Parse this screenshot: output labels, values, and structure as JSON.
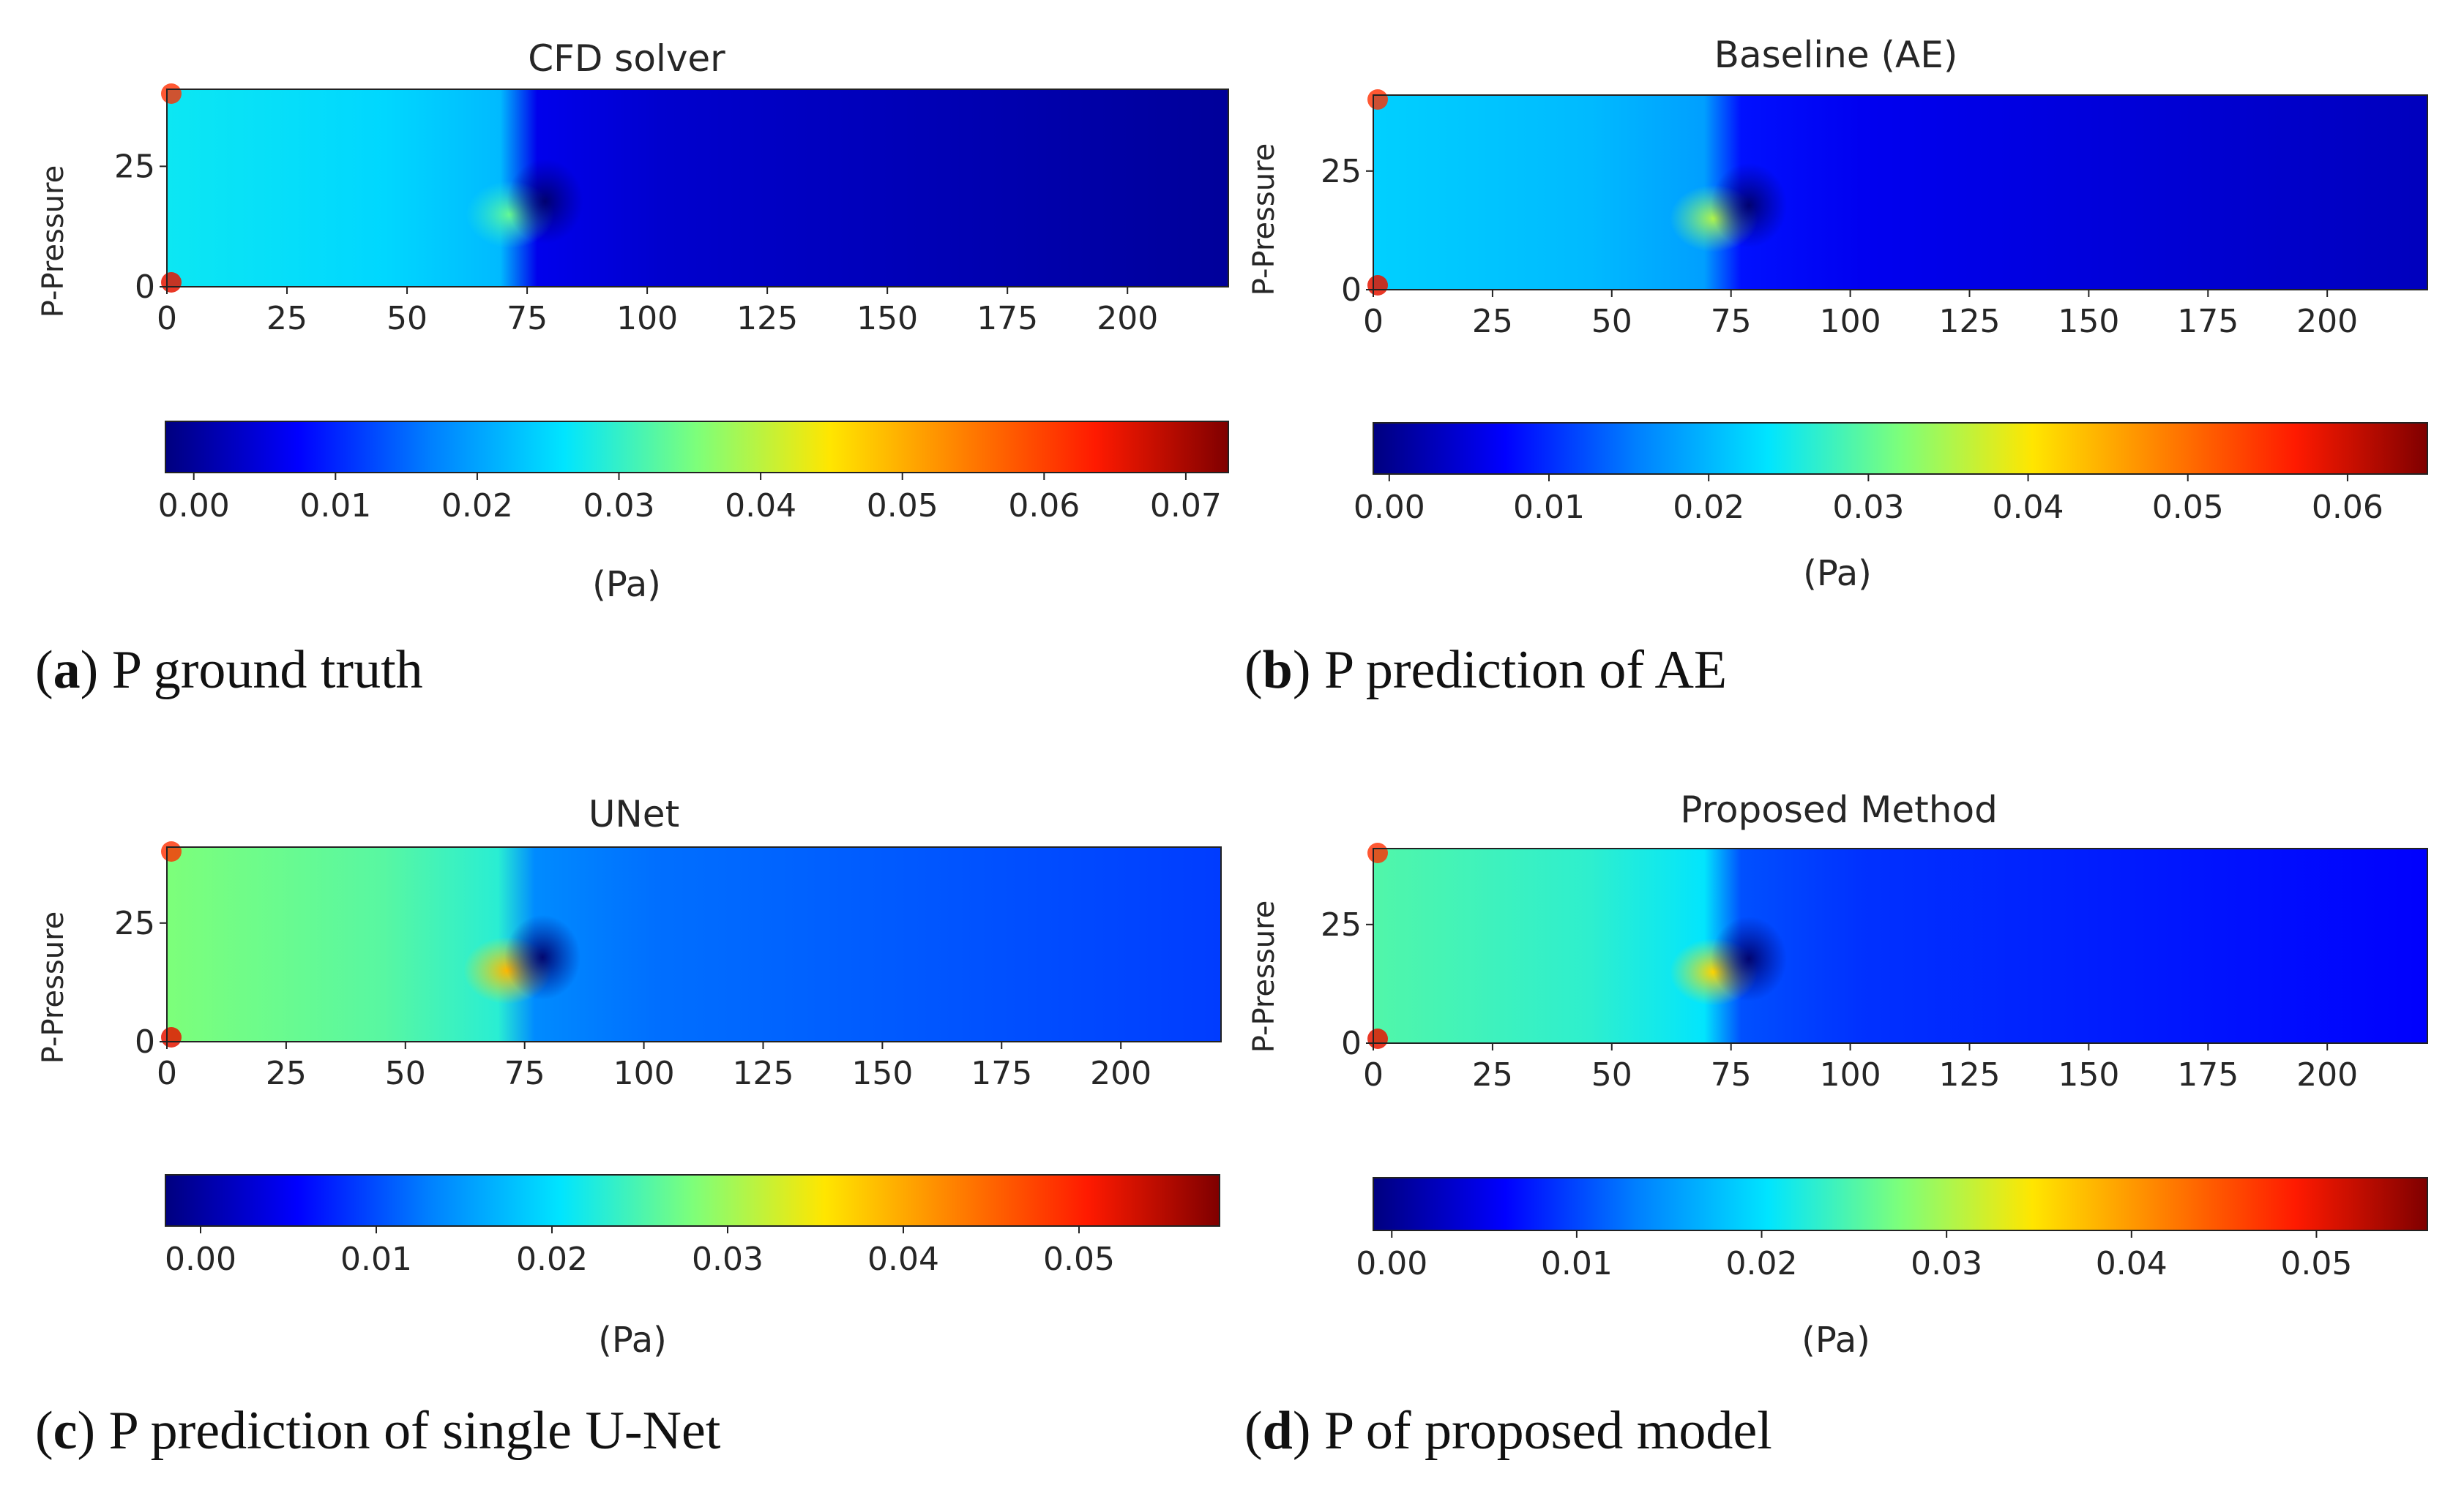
{
  "colormap": [
    "#00007f",
    "#0000ff",
    "#0080ff",
    "#00e5ff",
    "#7dff7a",
    "#ffe600",
    "#ff8000",
    "#ff1a00",
    "#7f0000"
  ],
  "chart_data": [
    {
      "type": "heatmap",
      "title": "CFD solver",
      "ylabel": "P-Pressure",
      "xlim": [
        0,
        221
      ],
      "ylim": [
        0,
        41
      ],
      "xticks": [
        0,
        25,
        50,
        75,
        100,
        125,
        150,
        175,
        200
      ],
      "yticks": [
        0,
        25
      ],
      "colorbar": {
        "min": -0.002,
        "max": 0.073,
        "ticks": [
          "0.00",
          "0.01",
          "0.02",
          "0.03",
          "0.04",
          "0.05",
          "0.06",
          "0.07"
        ],
        "label": "(Pa)"
      },
      "caption": {
        "letter": "a",
        "text": "P ground truth"
      },
      "field": {
        "inlet_value": 0.027,
        "obstacle_x": 76,
        "obstacle_y": 15,
        "obstacle_value": 0.03,
        "outlet_value": 0.0
      }
    },
    {
      "type": "heatmap",
      "title": "Baseline (AE)",
      "ylabel": "P-Pressure",
      "xlim": [
        0,
        221
      ],
      "ylim": [
        0,
        41
      ],
      "xticks": [
        0,
        25,
        50,
        75,
        100,
        125,
        150,
        175,
        200
      ],
      "yticks": [
        0,
        25
      ],
      "colorbar": {
        "min": -0.001,
        "max": 0.065,
        "ticks": [
          "0.00",
          "0.01",
          "0.02",
          "0.03",
          "0.04",
          "0.05",
          "0.06"
        ],
        "label": "(Pa)"
      },
      "caption": {
        "letter": "b",
        "text": "P prediction of AE"
      },
      "field": {
        "inlet_value": 0.022,
        "obstacle_x": 76,
        "obstacle_y": 15,
        "obstacle_value": 0.032,
        "outlet_value": 0.003
      }
    },
    {
      "type": "heatmap",
      "title": "UNet",
      "ylabel": "P-Pressure",
      "xlim": [
        0,
        221
      ],
      "ylim": [
        0,
        41
      ],
      "xticks": [
        0,
        25,
        50,
        75,
        100,
        125,
        150,
        175,
        200
      ],
      "yticks": [
        0,
        25
      ],
      "colorbar": {
        "min": -0.002,
        "max": 0.058,
        "ticks": [
          "0.00",
          "0.01",
          "0.02",
          "0.03",
          "0.04",
          "0.05"
        ],
        "label": "(Pa)"
      },
      "caption": {
        "letter": "c",
        "text": "P prediction of single U-Net"
      },
      "field": {
        "inlet_value": 0.028,
        "obstacle_x": 76,
        "obstacle_y": 15,
        "obstacle_value": 0.036,
        "outlet_value": 0.009
      }
    },
    {
      "type": "heatmap",
      "title": "Proposed Method",
      "ylabel": "P-Pressure",
      "xlim": [
        0,
        221
      ],
      "ylim": [
        0,
        41
      ],
      "xticks": [
        0,
        25,
        50,
        75,
        100,
        125,
        150,
        175,
        200
      ],
      "yticks": [
        0,
        25
      ],
      "colorbar": {
        "min": -0.001,
        "max": 0.056,
        "ticks": [
          "0.00",
          "0.01",
          "0.02",
          "0.03",
          "0.04",
          "0.05"
        ],
        "label": "(Pa)"
      },
      "caption": {
        "letter": "d",
        "text": "P of proposed model"
      },
      "field": {
        "inlet_value": 0.025,
        "obstacle_x": 76,
        "obstacle_y": 15,
        "obstacle_value": 0.033,
        "outlet_value": 0.006
      }
    }
  ]
}
